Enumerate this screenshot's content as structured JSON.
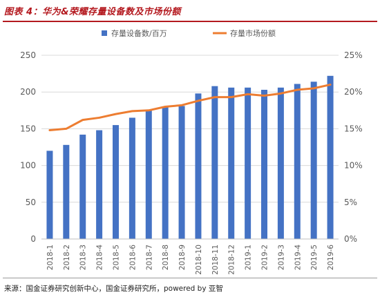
{
  "figure": {
    "title": "图表 4：华为&荣耀存量设备数及市场份额",
    "source": "来源：国金证券研究创新中心，国金证券研究所，powered by 亚智"
  },
  "colors": {
    "title": "#b4191f",
    "bar": "#4472c4",
    "line": "#ed7d31",
    "grid": "#d9d9d9",
    "text": "#595959"
  },
  "chart_data": {
    "type": "bar+line",
    "categories": [
      "2018-1",
      "2018-2",
      "2018-3",
      "2018-4",
      "2018-5",
      "2018-6",
      "2018-7",
      "2018-8",
      "2018-9",
      "2018-10",
      "2018-11",
      "2018-12",
      "2019-1",
      "2019-2",
      "2019-3",
      "2019-4",
      "2019-5",
      "2019-6"
    ],
    "series": [
      {
        "name": "存量设备数/百万",
        "type": "bar",
        "axis": "left",
        "values": [
          120,
          128,
          142,
          148,
          155,
          165,
          175,
          180,
          181,
          198,
          208,
          206,
          206,
          203,
          206,
          211,
          214,
          222
        ]
      },
      {
        "name": "存量市场份额",
        "type": "line",
        "axis": "right",
        "values": [
          14.8,
          15.0,
          16.2,
          16.5,
          17.0,
          17.4,
          17.5,
          18.0,
          18.2,
          18.8,
          19.3,
          19.3,
          19.7,
          19.5,
          19.8,
          20.3,
          20.5,
          21.0
        ]
      }
    ],
    "y_left": {
      "ylim": [
        0,
        250
      ],
      "ticks": [
        "0",
        "50",
        "100",
        "150",
        "200",
        "250"
      ]
    },
    "y_right": {
      "ylim": [
        0,
        25
      ],
      "ticks": [
        "0%",
        "5%",
        "10%",
        "15%",
        "20%",
        "25%"
      ]
    },
    "grid": true,
    "legend": "top-center"
  }
}
